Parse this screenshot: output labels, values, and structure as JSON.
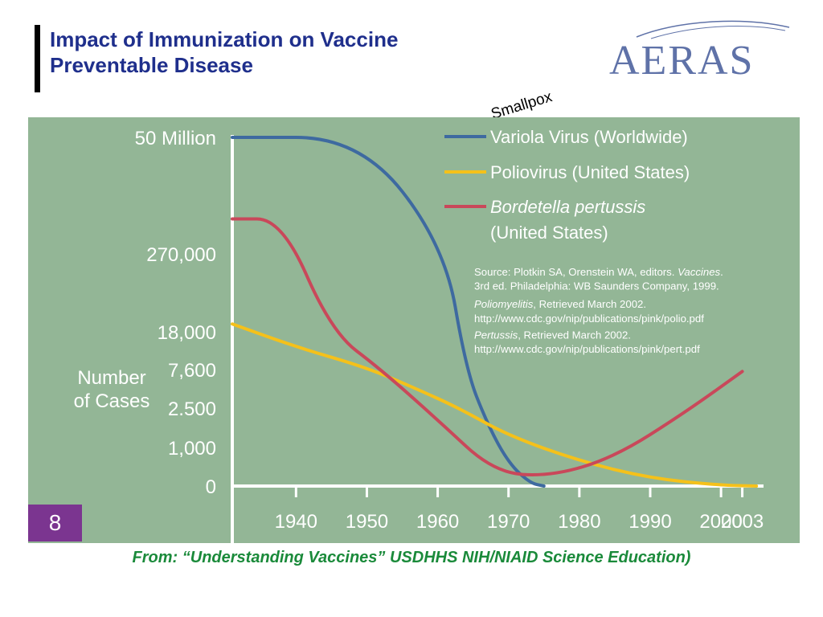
{
  "slide": {
    "title_line1": "Impact of Immunization on Vaccine",
    "title_line2": "Preventable Disease",
    "logo_text": "AERAS",
    "page_number": "8",
    "smallpox_note": "Smallpox",
    "caption": "From: “Understanding Vaccines” USDHHS NIH/NIAID Science Education)"
  },
  "colors": {
    "plot_bg": "#93b696",
    "axis": "#ffffff",
    "text": "#ffffff",
    "variola": "#3e6aa0",
    "polio": "#f5c11a",
    "pertussis": "#c9485a",
    "title": "#1f2f8c",
    "caption": "#1a8a3a",
    "badge": "#7b3590"
  },
  "chart_data": {
    "type": "line",
    "xlabel": "",
    "ylabel": "Number of Cases",
    "y_scale": "categorical (non-linear) tick levels",
    "y_ticks": [
      "0",
      "1,000",
      "2.500",
      "7,600",
      "18,000",
      "270,000",
      "50 Million"
    ],
    "x_ticks": [
      "1940",
      "1950",
      "1960",
      "1970",
      "1980",
      "1990",
      "2000",
      "2003"
    ],
    "xlim": [
      1931,
      2006
    ],
    "grid": false,
    "legend_position": "top-right",
    "series": [
      {
        "name": "Variola Virus (Worldwide)",
        "name_parts": [
          {
            "text": "Variola Virus (Worldwide)",
            "italic": false
          }
        ],
        "color": "#3e6aa0",
        "x": [
          1931,
          1949,
          1961,
          1964,
          1967,
          1970,
          1973,
          1975
        ],
        "y_level": [
          6,
          6,
          5.07,
          3.0,
          1.6,
          0.6,
          0.08,
          0
        ]
      },
      {
        "name": "Poliovirus (United States)",
        "name_parts": [
          {
            "text": "Poliovirus (United States)",
            "italic": false
          }
        ],
        "color": "#f5c11a",
        "x": [
          1931,
          1940,
          1950,
          1957,
          1963,
          1970,
          1980,
          1990,
          2000,
          2005
        ],
        "y_level": [
          4.1,
          3.6,
          3.05,
          2.5,
          2.0,
          1.3,
          0.65,
          0.2,
          0.02,
          0
        ]
      },
      {
        "name": "Bordetella pertussis (United States)",
        "name_parts": [
          {
            "text": "Bordetella pertussis",
            "italic": true
          },
          {
            "text": "(United States)",
            "italic": false
          }
        ],
        "color": "#c9485a",
        "x": [
          1931,
          1938,
          1945,
          1952,
          1960,
          1968,
          1976,
          1985,
          1995,
          2003
        ],
        "y_level": [
          5.3,
          5.3,
          4.0,
          3.0,
          1.7,
          0.35,
          0.25,
          0.75,
          1.9,
          2.95
        ]
      }
    ],
    "source_lines": [
      [
        {
          "text": "Source: Plotkin SA, Orenstein WA, editors. ",
          "italic": false
        },
        {
          "text": "Vaccines",
          "italic": true
        },
        {
          "text": ".",
          "italic": false
        }
      ],
      [
        {
          "text": "3rd ed. Philadelphia: WB Saunders Company, 1999.",
          "italic": false
        }
      ],
      [
        {
          "text": "Poliomyelitis",
          "italic": true
        },
        {
          "text": ", Retrieved March 2002.",
          "italic": false
        }
      ],
      [
        {
          "text": "http://www.cdc.gov/nip/publications/pink/polio.pdf",
          "italic": false
        }
      ],
      [
        {
          "text": "Pertussis",
          "italic": true
        },
        {
          "text": ", Retrieved March 2002.",
          "italic": false
        }
      ],
      [
        {
          "text": "http://www.cdc.gov/nip/publications/pink/pert.pdf",
          "italic": false
        }
      ]
    ]
  }
}
